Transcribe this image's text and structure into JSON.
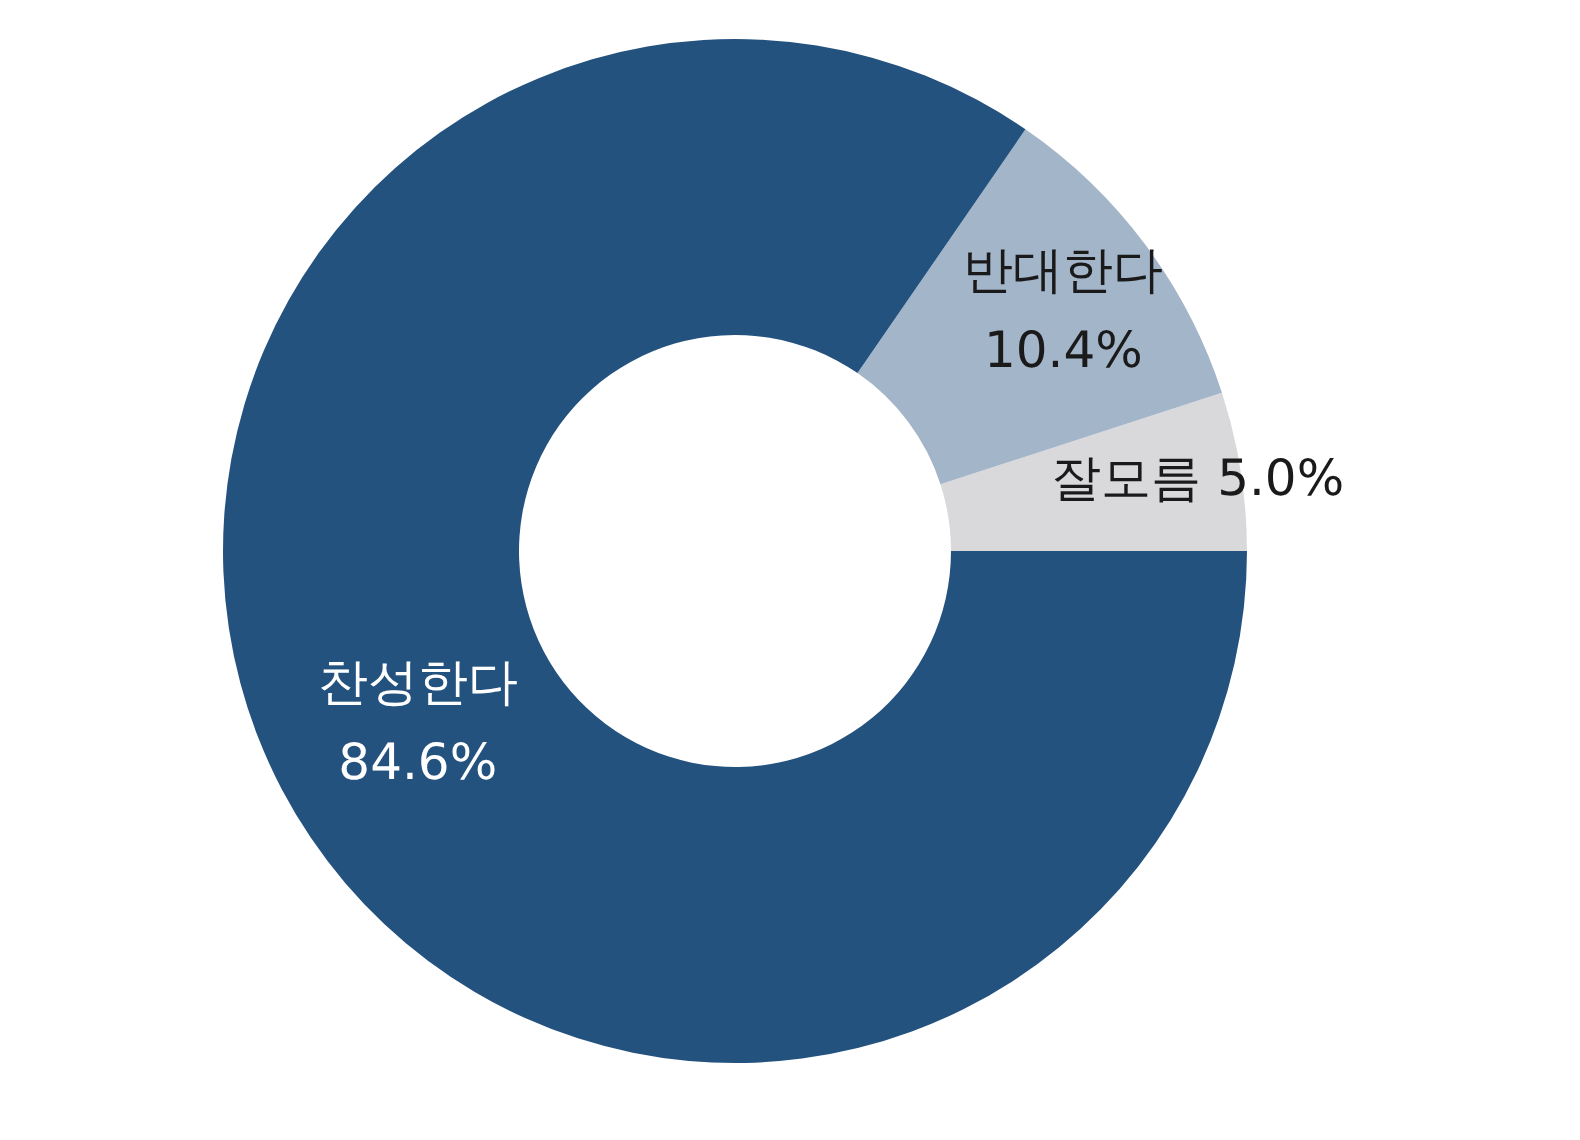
{
  "chart_data": {
    "type": "donut",
    "categories": [
      "잘모름",
      "반대한다",
      "찬성한다"
    ],
    "values": [
      5.0,
      10.4,
      84.6
    ],
    "value_labels": [
      "5.0%",
      "10.4%",
      "84.6%"
    ],
    "colors": [
      "#d9d9dc",
      "#a3b5c8",
      "#24527f"
    ],
    "legend": false
  }
}
